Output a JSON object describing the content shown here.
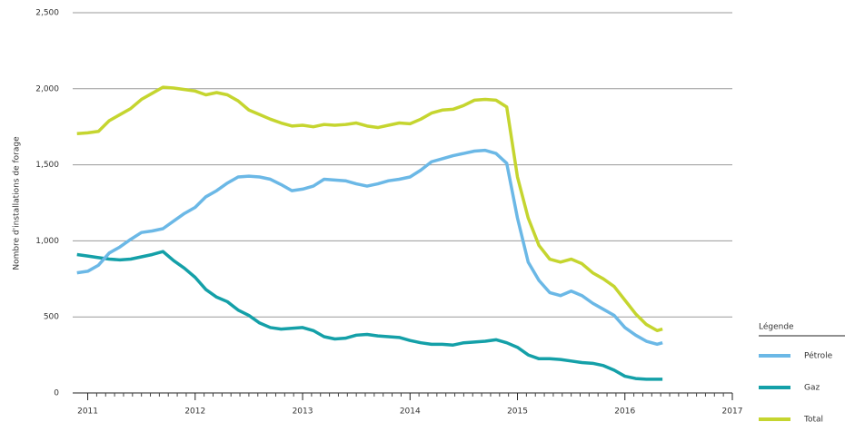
{
  "chart_data": {
    "type": "line",
    "ylabel": "Nombre d'installations de forage",
    "x": [
      2010.9,
      2011.0,
      2011.1,
      2011.2,
      2011.3,
      2011.4,
      2011.5,
      2011.6,
      2011.7,
      2011.8,
      2011.9,
      2012.0,
      2012.1,
      2012.2,
      2012.3,
      2012.4,
      2012.5,
      2012.6,
      2012.7,
      2012.8,
      2012.9,
      2013.0,
      2013.1,
      2013.2,
      2013.3,
      2013.4,
      2013.5,
      2013.6,
      2013.7,
      2013.8,
      2013.9,
      2014.0,
      2014.1,
      2014.2,
      2014.3,
      2014.4,
      2014.5,
      2014.6,
      2014.7,
      2014.8,
      2014.9,
      2015.0,
      2015.1,
      2015.2,
      2015.3,
      2015.4,
      2015.5,
      2015.6,
      2015.7,
      2015.8,
      2015.9,
      2016.0,
      2016.1,
      2016.2,
      2016.3,
      2016.35
    ],
    "series": [
      {
        "name": "Pétrole",
        "color": "#6bb8e6",
        "values": [
          790,
          800,
          840,
          920,
          960,
          1010,
          1055,
          1065,
          1080,
          1130,
          1180,
          1220,
          1290,
          1330,
          1380,
          1420,
          1425,
          1420,
          1405,
          1370,
          1330,
          1340,
          1360,
          1405,
          1400,
          1395,
          1375,
          1360,
          1375,
          1395,
          1405,
          1420,
          1465,
          1520,
          1540,
          1560,
          1575,
          1590,
          1595,
          1575,
          1510,
          1150,
          860,
          740,
          660,
          640,
          670,
          640,
          590,
          550,
          510,
          430,
          380,
          340,
          320,
          330
        ]
      },
      {
        "name": "Gaz",
        "color": "#14a0a8",
        "values": [
          910,
          900,
          890,
          880,
          875,
          880,
          895,
          910,
          930,
          870,
          820,
          760,
          680,
          630,
          600,
          545,
          510,
          460,
          430,
          420,
          425,
          430,
          410,
          370,
          355,
          360,
          380,
          385,
          375,
          370,
          365,
          345,
          330,
          320,
          320,
          315,
          330,
          335,
          340,
          350,
          330,
          300,
          250,
          225,
          225,
          220,
          210,
          200,
          195,
          180,
          150,
          110,
          95,
          90,
          90,
          90
        ]
      },
      {
        "name": "Total",
        "color": "#c5d52f",
        "values": [
          1705,
          1710,
          1720,
          1790,
          1830,
          1870,
          1930,
          1970,
          2010,
          2005,
          1995,
          1985,
          1960,
          1975,
          1960,
          1920,
          1860,
          1830,
          1800,
          1775,
          1755,
          1760,
          1750,
          1765,
          1760,
          1765,
          1775,
          1755,
          1745,
          1760,
          1775,
          1770,
          1800,
          1840,
          1860,
          1865,
          1890,
          1925,
          1930,
          1925,
          1880,
          1420,
          1150,
          970,
          880,
          860,
          880,
          850,
          790,
          750,
          700,
          610,
          520,
          450,
          410,
          420
        ]
      }
    ],
    "xlim": [
      2010.86,
      2017
    ],
    "xticks": [
      2011,
      2012,
      2013,
      2014,
      2015,
      2016,
      2017
    ],
    "ylim": [
      0,
      2500
    ],
    "yticks": [
      0,
      500,
      {
        "value": 1000,
        "label": "1,000"
      },
      {
        "value": 1500,
        "label": "1,500"
      },
      {
        "value": 2000,
        "label": "2,000"
      },
      {
        "value": 2500,
        "label": "2,500"
      }
    ],
    "grid": true,
    "legend_title": "Légende",
    "legend": "bottom-right"
  }
}
